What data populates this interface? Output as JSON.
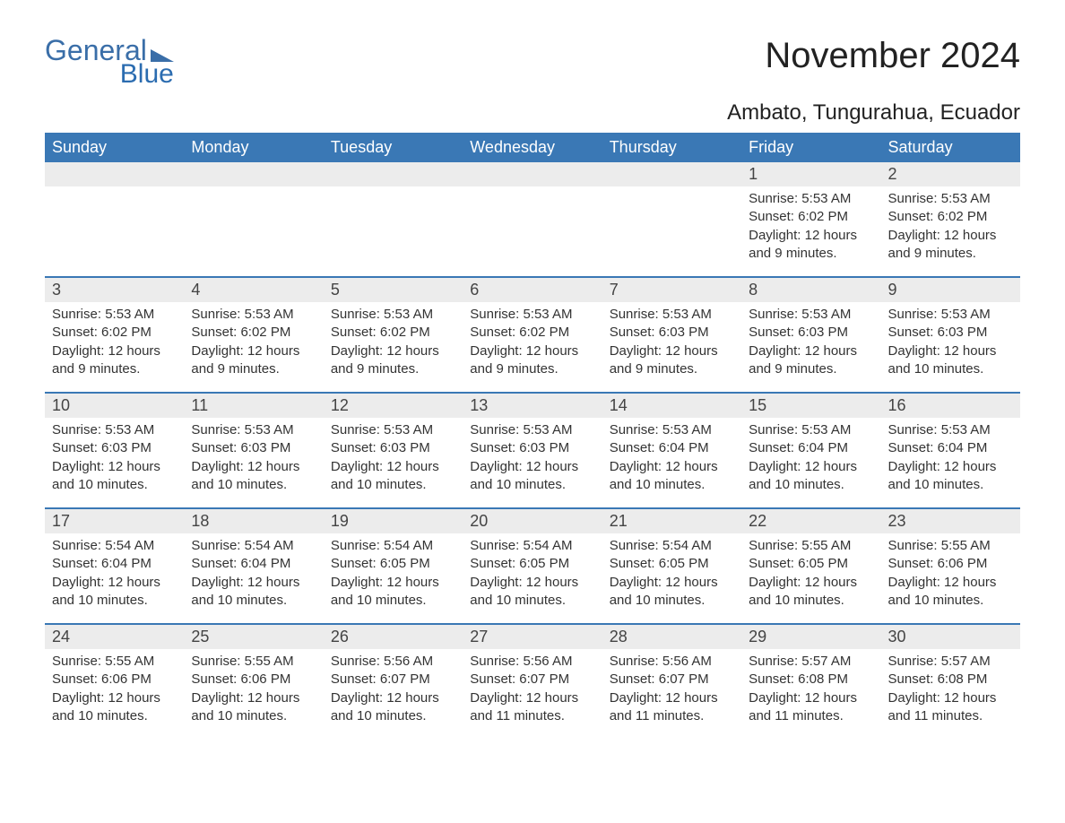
{
  "brand": {
    "part1": "General",
    "part2": "Blue"
  },
  "title": "November 2024",
  "location": "Ambato, Tungurahua, Ecuador",
  "colors": {
    "header_bg": "#3a78b5",
    "header_fg": "#ffffff",
    "daynum_bg": "#ececec",
    "row_sep": "#3a78b5",
    "text": "#333333",
    "logo": "#3a6ea8"
  },
  "day_headers": [
    "Sunday",
    "Monday",
    "Tuesday",
    "Wednesday",
    "Thursday",
    "Friday",
    "Saturday"
  ],
  "labels": {
    "sunrise": "Sunrise:",
    "sunset": "Sunset:",
    "daylight": "Daylight:"
  },
  "weeks": [
    [
      null,
      null,
      null,
      null,
      null,
      {
        "n": "1",
        "sunrise": "5:53 AM",
        "sunset": "6:02 PM",
        "daylight": "12 hours and 9 minutes."
      },
      {
        "n": "2",
        "sunrise": "5:53 AM",
        "sunset": "6:02 PM",
        "daylight": "12 hours and 9 minutes."
      }
    ],
    [
      {
        "n": "3",
        "sunrise": "5:53 AM",
        "sunset": "6:02 PM",
        "daylight": "12 hours and 9 minutes."
      },
      {
        "n": "4",
        "sunrise": "5:53 AM",
        "sunset": "6:02 PM",
        "daylight": "12 hours and 9 minutes."
      },
      {
        "n": "5",
        "sunrise": "5:53 AM",
        "sunset": "6:02 PM",
        "daylight": "12 hours and 9 minutes."
      },
      {
        "n": "6",
        "sunrise": "5:53 AM",
        "sunset": "6:02 PM",
        "daylight": "12 hours and 9 minutes."
      },
      {
        "n": "7",
        "sunrise": "5:53 AM",
        "sunset": "6:03 PM",
        "daylight": "12 hours and 9 minutes."
      },
      {
        "n": "8",
        "sunrise": "5:53 AM",
        "sunset": "6:03 PM",
        "daylight": "12 hours and 9 minutes."
      },
      {
        "n": "9",
        "sunrise": "5:53 AM",
        "sunset": "6:03 PM",
        "daylight": "12 hours and 10 minutes."
      }
    ],
    [
      {
        "n": "10",
        "sunrise": "5:53 AM",
        "sunset": "6:03 PM",
        "daylight": "12 hours and 10 minutes."
      },
      {
        "n": "11",
        "sunrise": "5:53 AM",
        "sunset": "6:03 PM",
        "daylight": "12 hours and 10 minutes."
      },
      {
        "n": "12",
        "sunrise": "5:53 AM",
        "sunset": "6:03 PM",
        "daylight": "12 hours and 10 minutes."
      },
      {
        "n": "13",
        "sunrise": "5:53 AM",
        "sunset": "6:03 PM",
        "daylight": "12 hours and 10 minutes."
      },
      {
        "n": "14",
        "sunrise": "5:53 AM",
        "sunset": "6:04 PM",
        "daylight": "12 hours and 10 minutes."
      },
      {
        "n": "15",
        "sunrise": "5:53 AM",
        "sunset": "6:04 PM",
        "daylight": "12 hours and 10 minutes."
      },
      {
        "n": "16",
        "sunrise": "5:53 AM",
        "sunset": "6:04 PM",
        "daylight": "12 hours and 10 minutes."
      }
    ],
    [
      {
        "n": "17",
        "sunrise": "5:54 AM",
        "sunset": "6:04 PM",
        "daylight": "12 hours and 10 minutes."
      },
      {
        "n": "18",
        "sunrise": "5:54 AM",
        "sunset": "6:04 PM",
        "daylight": "12 hours and 10 minutes."
      },
      {
        "n": "19",
        "sunrise": "5:54 AM",
        "sunset": "6:05 PM",
        "daylight": "12 hours and 10 minutes."
      },
      {
        "n": "20",
        "sunrise": "5:54 AM",
        "sunset": "6:05 PM",
        "daylight": "12 hours and 10 minutes."
      },
      {
        "n": "21",
        "sunrise": "5:54 AM",
        "sunset": "6:05 PM",
        "daylight": "12 hours and 10 minutes."
      },
      {
        "n": "22",
        "sunrise": "5:55 AM",
        "sunset": "6:05 PM",
        "daylight": "12 hours and 10 minutes."
      },
      {
        "n": "23",
        "sunrise": "5:55 AM",
        "sunset": "6:06 PM",
        "daylight": "12 hours and 10 minutes."
      }
    ],
    [
      {
        "n": "24",
        "sunrise": "5:55 AM",
        "sunset": "6:06 PM",
        "daylight": "12 hours and 10 minutes."
      },
      {
        "n": "25",
        "sunrise": "5:55 AM",
        "sunset": "6:06 PM",
        "daylight": "12 hours and 10 minutes."
      },
      {
        "n": "26",
        "sunrise": "5:56 AM",
        "sunset": "6:07 PM",
        "daylight": "12 hours and 10 minutes."
      },
      {
        "n": "27",
        "sunrise": "5:56 AM",
        "sunset": "6:07 PM",
        "daylight": "12 hours and 11 minutes."
      },
      {
        "n": "28",
        "sunrise": "5:56 AM",
        "sunset": "6:07 PM",
        "daylight": "12 hours and 11 minutes."
      },
      {
        "n": "29",
        "sunrise": "5:57 AM",
        "sunset": "6:08 PM",
        "daylight": "12 hours and 11 minutes."
      },
      {
        "n": "30",
        "sunrise": "5:57 AM",
        "sunset": "6:08 PM",
        "daylight": "12 hours and 11 minutes."
      }
    ]
  ]
}
